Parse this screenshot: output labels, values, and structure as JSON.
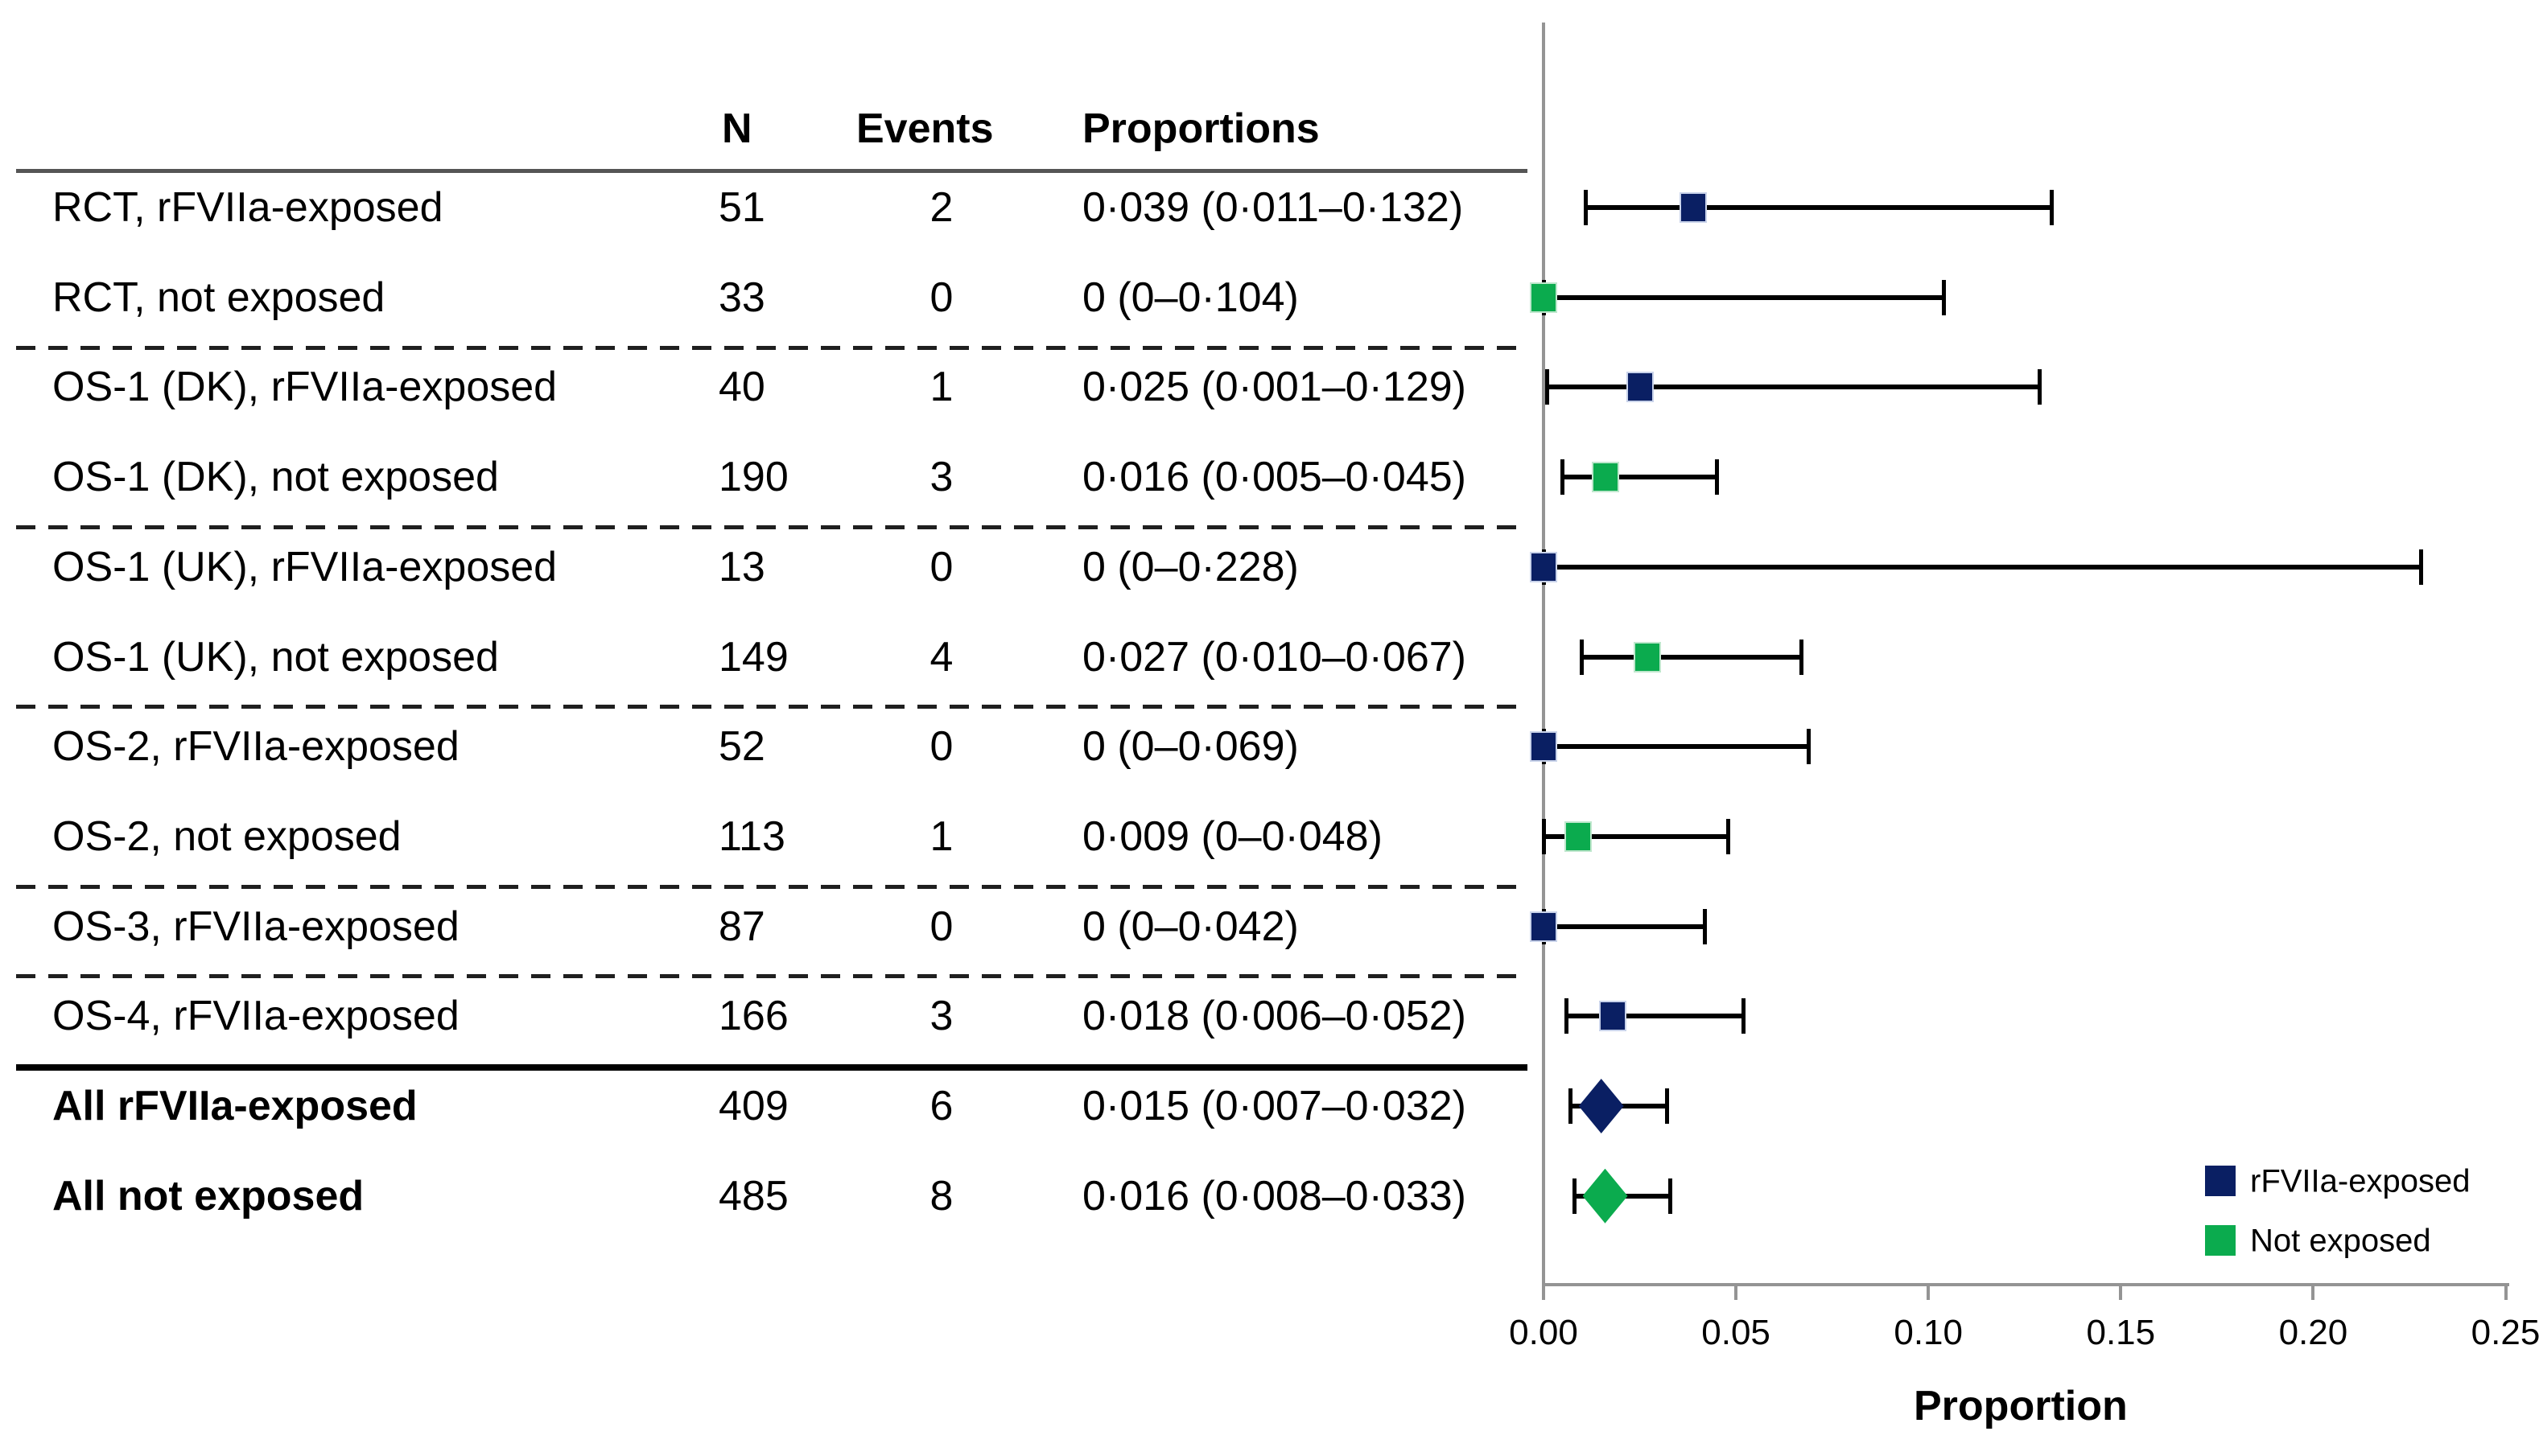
{
  "chart_data": {
    "type": "forest",
    "xlabel": "Proportion",
    "xlim": [
      0,
      0.25
    ],
    "xticks": [
      0,
      0.05,
      0.1,
      0.15,
      0.2,
      0.25
    ],
    "xtick_labels": [
      "0.00",
      "0.05",
      "0.10",
      "0.15",
      "0.20",
      "0.25"
    ],
    "grid": false,
    "legend_position": "bottom-right",
    "columns": {
      "n": "N",
      "events": "Events",
      "proportions": "Proportions"
    },
    "legend": [
      {
        "label": "rFVIIa-exposed",
        "group": "exposed"
      },
      {
        "label": "Not exposed",
        "group": "not_exposed"
      }
    ],
    "rows": [
      {
        "label": "RCT, rFVIIa-exposed",
        "n": "51",
        "events": "2",
        "proportions": "0·039 (0·011–0·132)",
        "group": "exposed",
        "marker": "square",
        "est": 0.039,
        "ci_low": 0.011,
        "ci_high": 0.132,
        "bold": false,
        "separator_after": "none"
      },
      {
        "label": "RCT, not exposed",
        "n": "33",
        "events": "0",
        "proportions": "0 (0–0·104)",
        "group": "not_exposed",
        "marker": "square",
        "est": 0.0,
        "ci_low": 0.0,
        "ci_high": 0.104,
        "bold": false,
        "separator_after": "dashed"
      },
      {
        "label": "OS-1 (DK), rFVIIa-exposed",
        "n": "40",
        "events": "1",
        "proportions": "0·025 (0·001–0·129)",
        "group": "exposed",
        "marker": "square",
        "est": 0.025,
        "ci_low": 0.001,
        "ci_high": 0.129,
        "bold": false,
        "separator_after": "none"
      },
      {
        "label": "OS-1 (DK), not exposed",
        "n": "190",
        "events": "3",
        "proportions": "0·016 (0·005–0·045)",
        "group": "not_exposed",
        "marker": "square",
        "est": 0.016,
        "ci_low": 0.005,
        "ci_high": 0.045,
        "bold": false,
        "separator_after": "dashed"
      },
      {
        "label": "OS-1 (UK), rFVIIa-exposed",
        "n": "13",
        "events": "0",
        "proportions": "0 (0–0·228)",
        "group": "exposed",
        "marker": "square",
        "est": 0.0,
        "ci_low": 0.0,
        "ci_high": 0.228,
        "bold": false,
        "separator_after": "none"
      },
      {
        "label": "OS-1 (UK), not exposed",
        "n": "149",
        "events": "4",
        "proportions": "0·027 (0·010–0·067)",
        "group": "not_exposed",
        "marker": "square",
        "est": 0.027,
        "ci_low": 0.01,
        "ci_high": 0.067,
        "bold": false,
        "separator_after": "dashed"
      },
      {
        "label": "OS-2, rFVIIa-exposed",
        "n": "52",
        "events": "0",
        "proportions": "0 (0–0·069)",
        "group": "exposed",
        "marker": "square",
        "est": 0.0,
        "ci_low": 0.0,
        "ci_high": 0.069,
        "bold": false,
        "separator_after": "none"
      },
      {
        "label": "OS-2, not exposed",
        "n": "113",
        "events": "1",
        "proportions": "0·009 (0–0·048)",
        "group": "not_exposed",
        "marker": "square",
        "est": 0.009,
        "ci_low": 0.0,
        "ci_high": 0.048,
        "bold": false,
        "separator_after": "dashed"
      },
      {
        "label": "OS-3, rFVIIa-exposed",
        "n": "87",
        "events": "0",
        "proportions": "0 (0–0·042)",
        "group": "exposed",
        "marker": "square",
        "est": 0.0,
        "ci_low": 0.0,
        "ci_high": 0.042,
        "bold": false,
        "separator_after": "dashed"
      },
      {
        "label": "OS-4, rFVIIa-exposed",
        "n": "166",
        "events": "3",
        "proportions": "0·018 (0·006–0·052)",
        "group": "exposed",
        "marker": "square",
        "est": 0.018,
        "ci_low": 0.006,
        "ci_high": 0.052,
        "bold": false,
        "separator_after": "thick"
      },
      {
        "label": "All rFVIIa-exposed",
        "n": "409",
        "events": "6",
        "proportions": "0·015 (0·007–0·032)",
        "group": "exposed",
        "marker": "diamond",
        "est": 0.015,
        "ci_low": 0.007,
        "ci_high": 0.032,
        "bold": true,
        "separator_after": "none"
      },
      {
        "label": "All not exposed",
        "n": "485",
        "events": "8",
        "proportions": "0·016 (0·008–0·033)",
        "group": "not_exposed",
        "marker": "diamond",
        "est": 0.016,
        "ci_low": 0.008,
        "ci_high": 0.033,
        "bold": true,
        "separator_after": "none"
      }
    ]
  },
  "colors": {
    "exposed": "#0a1f63",
    "not_exposed": "#0bab4e",
    "axis": "#949494",
    "ci": "#000000"
  }
}
